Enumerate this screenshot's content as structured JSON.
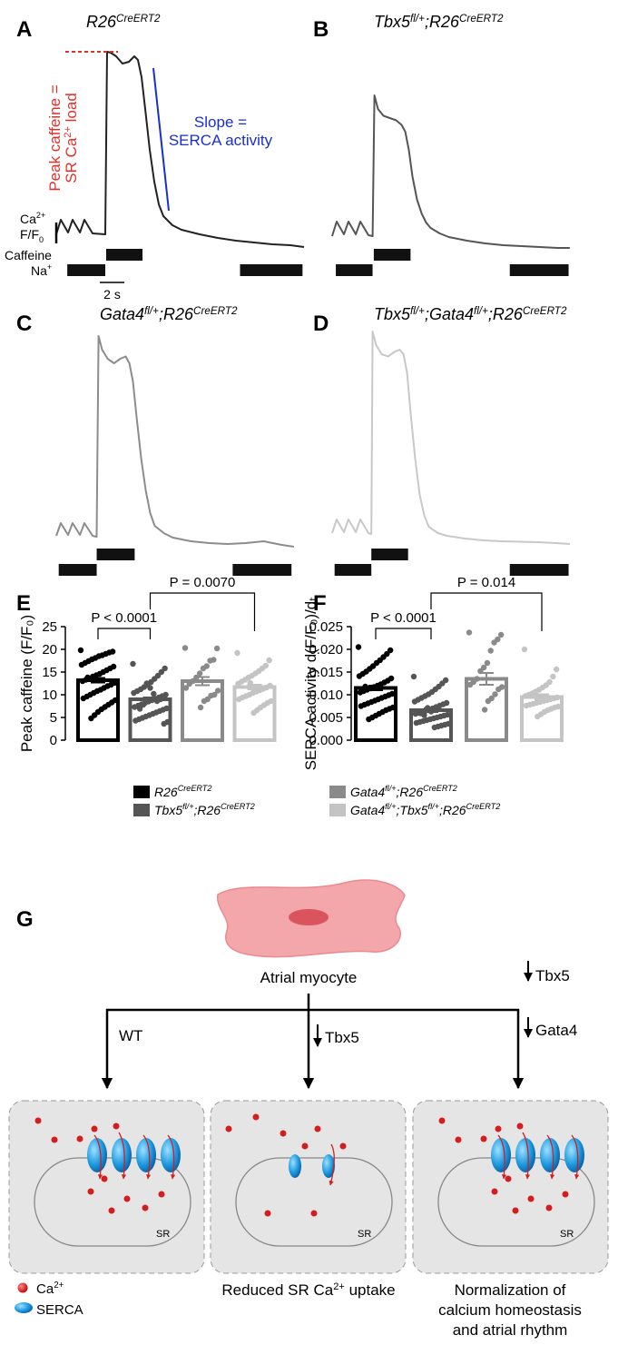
{
  "panel_labels": [
    "A",
    "B",
    "C",
    "D",
    "E",
    "F",
    "G"
  ],
  "chart_data": [
    {
      "type": "line",
      "color": "#222222",
      "title": [
        {
          "text": "R26"
        },
        {
          "text": "CreERT2",
          "sup": true
        }
      ],
      "x": [
        0,
        0.37,
        0.96,
        1.33,
        1.93,
        2.3,
        2.96,
        4.0,
        4.15,
        4.44,
        4.89,
        5.41,
        5.93,
        6.37,
        6.67,
        6.96,
        7.26,
        7.63,
        8.0,
        8.37,
        8.74,
        9.48,
        10.22,
        11.7,
        13.19,
        14.67,
        16.15,
        17.63,
        19.11,
        20.22
      ],
      "values": [
        0.44,
        0.76,
        0.48,
        0.76,
        0.48,
        0.76,
        0.46,
        0.44,
        4.46,
        4.44,
        4.36,
        4.2,
        4.24,
        4.36,
        4.28,
        3.9,
        3.2,
        2.3,
        1.6,
        1.1,
        0.84,
        0.64,
        0.54,
        0.44,
        0.36,
        0.3,
        0.26,
        0.22,
        0.2,
        0.16
      ],
      "caffeine": [
        4.07,
        7.04
      ],
      "na": [
        [
          0.9,
          4.0
        ],
        [
          15.0,
          20.1
        ]
      ]
    },
    {
      "type": "line",
      "color": "#555555",
      "title": [
        {
          "text": "Tbx5"
        },
        {
          "text": "fl/+",
          "sup": true
        },
        {
          "text": ";R26"
        },
        {
          "text": "CreERT2",
          "sup": true
        }
      ],
      "x": [
        0,
        0.37,
        0.96,
        1.33,
        1.93,
        2.3,
        2.96,
        3.3,
        3.45,
        3.74,
        4.19,
        4.71,
        5.23,
        5.67,
        5.97,
        6.26,
        6.56,
        6.93,
        7.3,
        7.67,
        8.04,
        8.78,
        9.52,
        11.0,
        12.49,
        13.97,
        15.45,
        16.93,
        18.41,
        19.4
      ],
      "values": [
        0.4,
        0.72,
        0.44,
        0.72,
        0.44,
        0.72,
        0.42,
        0.4,
        3.5,
        3.2,
        3.05,
        3.0,
        2.95,
        2.85,
        2.7,
        2.3,
        1.7,
        1.2,
        0.9,
        0.7,
        0.58,
        0.46,
        0.38,
        0.3,
        0.24,
        0.2,
        0.18,
        0.16,
        0.14,
        0.14
      ],
      "caffeine": [
        3.4,
        6.4
      ],
      "na": [
        [
          0.3,
          3.3
        ],
        [
          14.5,
          19.3
        ]
      ]
    },
    {
      "type": "line",
      "color": "#8c8c8c",
      "title": [
        {
          "text": "Gata4"
        },
        {
          "text": "fl/+",
          "sup": true
        },
        {
          "text": ";R26"
        },
        {
          "text": "CreERT2",
          "sup": true
        }
      ],
      "x": [
        0,
        0.37,
        0.96,
        1.33,
        1.93,
        2.3,
        2.96,
        3.3,
        3.45,
        3.74,
        4.19,
        4.71,
        5.23,
        5.67,
        5.97,
        6.26,
        6.56,
        6.93,
        7.3,
        7.67,
        8.04,
        8.78,
        9.52,
        11.0,
        12.49,
        13.97,
        15.45,
        16.93,
        18.41,
        19.4
      ],
      "values": [
        0.4,
        0.68,
        0.42,
        0.68,
        0.42,
        0.68,
        0.4,
        0.38,
        4.8,
        4.5,
        4.3,
        4.2,
        4.3,
        4.35,
        4.2,
        3.8,
        3.0,
        2.1,
        1.4,
        0.9,
        0.62,
        0.46,
        0.36,
        0.28,
        0.24,
        0.22,
        0.24,
        0.28,
        0.2,
        0.16
      ],
      "caffeine": [
        3.3,
        6.4
      ],
      "na": [
        [
          0.2,
          3.3
        ],
        [
          14.4,
          19.2
        ]
      ]
    },
    {
      "type": "line",
      "color": "#c8c8c8",
      "title": [
        {
          "text": "Tbx5"
        },
        {
          "text": "fl/+",
          "sup": true
        },
        {
          "text": ";Gata4"
        },
        {
          "text": "fl/+",
          "sup": true
        },
        {
          "text": ";R26"
        },
        {
          "text": "CreERT2",
          "sup": true
        }
      ],
      "x": [
        0,
        0.37,
        0.96,
        1.33,
        1.93,
        2.3,
        2.96,
        3.2,
        3.3,
        3.59,
        4.04,
        4.56,
        5.08,
        5.52,
        5.82,
        6.11,
        6.41,
        6.78,
        7.15,
        7.52,
        7.89,
        8.63,
        9.37,
        10.85,
        12.34,
        13.82,
        15.3,
        16.78,
        18.26,
        19.4
      ],
      "values": [
        0.46,
        0.76,
        0.48,
        0.76,
        0.48,
        0.76,
        0.46,
        0.44,
        4.9,
        4.6,
        4.4,
        4.35,
        4.45,
        4.5,
        4.4,
        4.0,
        3.1,
        2.1,
        1.3,
        0.85,
        0.6,
        0.46,
        0.4,
        0.34,
        0.3,
        0.28,
        0.27,
        0.26,
        0.24,
        0.22
      ],
      "caffeine": [
        3.2,
        6.2
      ],
      "na": [
        [
          0.2,
          3.2
        ],
        [
          14.5,
          19.3
        ]
      ]
    },
    {
      "type": "bar",
      "ylabel": "Peak caffeine (F/F₀)",
      "colors": [
        "#000000",
        "#555555",
        "#8a8a8a",
        "#c4c4c4"
      ],
      "values": [
        13.2,
        9.0,
        13.0,
        11.7
      ],
      "errors": [
        0.5,
        0.4,
        0.9,
        0.5
      ],
      "points": [
        [
          19.8,
          19.5,
          19.3,
          19.0,
          18.7,
          18.5,
          18.1,
          17.8,
          17.4,
          17.0,
          16.6,
          16.2,
          15.8,
          15.4,
          15.0,
          14.6,
          14.3,
          14.0,
          13.6,
          13.3,
          13.0,
          12.6,
          12.2,
          11.9,
          11.5,
          11.1,
          10.8,
          10.4,
          10.0,
          9.6,
          9.2,
          8.8,
          8.3,
          7.8,
          7.3,
          6.8,
          6.2,
          5.5,
          4.8,
          13.8
        ],
        [
          16.8,
          15.8,
          15.0,
          14.2,
          13.5,
          12.8,
          12.2,
          11.7,
          11.2,
          10.8,
          10.4,
          10.0,
          9.7,
          9.4,
          9.1,
          8.8,
          8.5,
          8.2,
          7.9,
          7.6,
          7.3,
          7.0,
          6.7,
          6.4,
          6.1,
          5.8,
          5.5,
          5.2,
          4.9,
          4.6,
          4.3,
          4.0,
          3.6,
          9.0,
          8.6,
          10.2,
          11.5,
          12.5,
          7.8,
          6.9
        ],
        [
          20.3,
          20.2,
          17.7,
          17.5,
          16.3,
          15.8,
          14.7,
          13.8,
          13.0,
          12.4,
          11.5,
          10.9,
          10.0,
          9.8,
          9.0,
          8.6,
          7.2
        ],
        [
          19.2,
          17.6,
          16.4,
          15.8,
          15.2,
          14.7,
          14.2,
          13.8,
          13.3,
          12.9,
          12.4,
          12.0,
          11.6,
          11.3,
          11.0,
          10.7,
          10.4,
          10.0,
          9.7,
          9.4,
          9.0,
          8.6,
          8.2,
          7.7,
          7.2,
          6.6,
          6.0,
          12.6
        ]
      ],
      "ylim": [
        0,
        25
      ],
      "yticks": [
        0,
        5,
        10,
        15,
        20,
        25
      ],
      "comparisons": [
        {
          "from": 0,
          "to": 1,
          "label": "P < 0.0001"
        },
        {
          "from": 1,
          "to": 3,
          "label": "P = 0.0070"
        }
      ]
    },
    {
      "type": "bar",
      "ylabel": "SERCA activity d(F/F₀)/dₜ",
      "colors": [
        "#000000",
        "#555555",
        "#8a8a8a",
        "#c4c4c4"
      ],
      "values": [
        0.0115,
        0.0066,
        0.0135,
        0.0095
      ],
      "errors": [
        0.0005,
        0.0004,
        0.0013,
        0.0006
      ],
      "points": [
        [
          0.0205,
          0.0198,
          0.019,
          0.0183,
          0.0176,
          0.017,
          0.0163,
          0.0157,
          0.0151,
          0.0146,
          0.0141,
          0.0136,
          0.0131,
          0.0127,
          0.0123,
          0.012,
          0.0117,
          0.0114,
          0.0111,
          0.0108,
          0.0105,
          0.0102,
          0.0099,
          0.0096,
          0.0093,
          0.009,
          0.0087,
          0.0084,
          0.0081,
          0.0078,
          0.0075,
          0.0072,
          0.0069,
          0.0066,
          0.0062,
          0.0058,
          0.0054,
          0.005,
          0.0046,
          0.0118
        ],
        [
          0.014,
          0.0132,
          0.0125,
          0.0118,
          0.0112,
          0.0106,
          0.0101,
          0.0097,
          0.0093,
          0.0089,
          0.0085,
          0.0082,
          0.0079,
          0.0076,
          0.0073,
          0.007,
          0.0067,
          0.0065,
          0.0062,
          0.006,
          0.0058,
          0.0056,
          0.0054,
          0.0052,
          0.005,
          0.0048,
          0.0046,
          0.0044,
          0.0042,
          0.004,
          0.0038,
          0.0036,
          0.0034,
          0.0032,
          0.003,
          0.0028,
          0.0063,
          0.0071,
          0.0055,
          0.0059
        ],
        [
          0.0237,
          0.0232,
          0.0222,
          0.0215,
          0.0197,
          0.017,
          0.016,
          0.0152,
          0.0135,
          0.0128,
          0.0122,
          0.0117,
          0.0112,
          0.0101,
          0.0092,
          0.0086,
          0.0067
        ],
        [
          0.02,
          0.0156,
          0.014,
          0.0128,
          0.0121,
          0.0116,
          0.0111,
          0.0107,
          0.0103,
          0.01,
          0.0097,
          0.0094,
          0.0092,
          0.009,
          0.0088,
          0.0086,
          0.0084,
          0.0082,
          0.008,
          0.0078,
          0.0076,
          0.0074,
          0.0072,
          0.0069,
          0.0066,
          0.0062,
          0.0057,
          0.0052
        ]
      ],
      "ylim": [
        0,
        0.025
      ],
      "yticks": [
        {
          "value": 0,
          "label": "0.000"
        },
        {
          "value": 0.005,
          "label": "0.005"
        },
        {
          "value": 0.01,
          "label": "0.010"
        },
        {
          "value": 0.015,
          "label": "0.015"
        },
        {
          "value": 0.02,
          "label": "0.020"
        },
        {
          "value": 0.025,
          "label": "0.025"
        }
      ],
      "comparisons": [
        {
          "from": 0,
          "to": 1,
          "label": "P < 0.0001"
        },
        {
          "from": 1,
          "to": 3,
          "label": "P = 0.014"
        }
      ]
    }
  ],
  "legend": [
    [
      {
        "text": "R26"
      },
      {
        "text": "CreERT2",
        "sup": true
      }
    ],
    [
      {
        "text": "Tbx5"
      },
      {
        "text": "fl/+",
        "sup": true
      },
      {
        "text": ";R26"
      },
      {
        "text": "CreERT2",
        "sup": true
      }
    ],
    [
      {
        "text": "Gata4"
      },
      {
        "text": "fl/+",
        "sup": true
      },
      {
        "text": ";R26"
      },
      {
        "text": "CreERT2",
        "sup": true
      }
    ],
    [
      {
        "text": "Gata4"
      },
      {
        "text": "fl/+",
        "sup": true
      },
      {
        "text": ";Tbx5"
      },
      {
        "text": "fl/+",
        "sup": true
      },
      {
        "text": ";R26"
      },
      {
        "text": "CreERT2",
        "sup": true
      }
    ]
  ],
  "trace_labels": {
    "ca": [
      {
        "text": "Ca"
      },
      {
        "text": "2+",
        "sup": true
      }
    ],
    "ff0": [
      {
        "text": "F/F"
      },
      {
        "text": "0",
        "sub": true
      }
    ],
    "caffeine": "Caffeine",
    "na": [
      {
        "text": "Na"
      },
      {
        "text": "+",
        "sup": true
      }
    ],
    "scale_bar": {
      "value": 2,
      "label": "2 s"
    }
  },
  "annotations": {
    "peak": [
      [
        {
          "text": "Peak caffeine ="
        }
      ],
      [
        {
          "text": "SR Ca"
        },
        {
          "text": "2+",
          "sup": true
        },
        {
          "text": " load"
        }
      ]
    ],
    "slope": [
      [
        {
          "text": "Slope ="
        }
      ],
      [
        {
          "text": "SERCA activity"
        }
      ]
    ]
  },
  "diagram": {
    "cell_label": "Atrial myocyte",
    "wt": "WT",
    "mid_gene": "Tbx5",
    "right_genes": [
      "Tbx5",
      "Gata4"
    ],
    "sr": "SR",
    "legend_ca": [
      {
        "text": "Ca"
      },
      {
        "text": "2+",
        "sup": true
      }
    ],
    "legend_serca": "SERCA",
    "reduced": [
      {
        "text": "Reduced SR Ca"
      },
      {
        "text": "2+",
        "sup": true
      },
      {
        "text": " uptake"
      }
    ],
    "normalization": [
      "Normalization of",
      "calcium homeostasis",
      "and atrial rhythm"
    ]
  }
}
